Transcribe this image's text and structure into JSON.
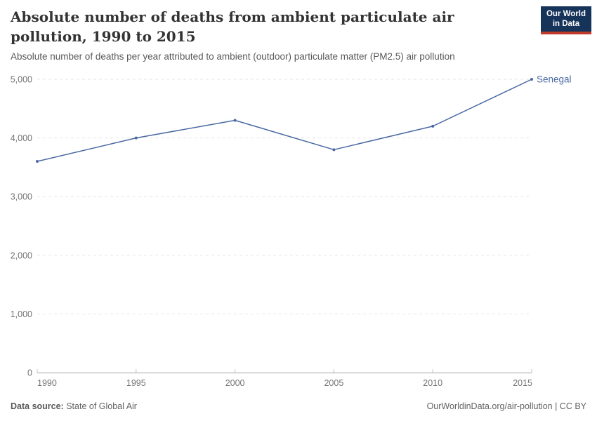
{
  "header": {
    "title": "Absolute number of deaths from ambient particulate air pollution, 1990 to 2015",
    "subtitle": "Absolute number of deaths per year attributed to ambient (outdoor) particulate matter (PM2.5) air pollution"
  },
  "logo": {
    "line1": "Our World",
    "line2": "in Data",
    "bg_color": "#16335a",
    "bar_color": "#c0392b",
    "text_color": "#ffffff"
  },
  "chart_data": {
    "type": "line",
    "title": "Absolute number of deaths from ambient particulate air pollution, 1990 to 2015",
    "subtitle": "Absolute number of deaths per year attributed to ambient (outdoor) particulate matter (PM2.5) air pollution",
    "x": [
      1990,
      1995,
      2000,
      2005,
      2010,
      2015
    ],
    "series": [
      {
        "name": "Senegal",
        "color": "#4a69a3",
        "values": [
          3600,
          4000,
          4300,
          3800,
          4200,
          5000
        ]
      }
    ],
    "xlabel": "",
    "ylabel": "",
    "xlim": [
      1990,
      2015
    ],
    "ylim": [
      0,
      5000
    ],
    "yticks": [
      {
        "value": 0,
        "label": "0"
      },
      {
        "value": 1000,
        "label": "1,000"
      },
      {
        "value": 2000,
        "label": "2,000"
      },
      {
        "value": 3000,
        "label": "3,000"
      },
      {
        "value": 4000,
        "label": "4,000"
      },
      {
        "value": 5000,
        "label": "5,000"
      }
    ],
    "xticks": [
      {
        "value": 1990,
        "label": "1990"
      },
      {
        "value": 1995,
        "label": "1995"
      },
      {
        "value": 2000,
        "label": "2000"
      },
      {
        "value": 2005,
        "label": "2005"
      },
      {
        "value": 2010,
        "label": "2010"
      },
      {
        "value": 2015,
        "label": "2015"
      }
    ],
    "grid": "horizontal-dashed",
    "legend": "inline-end-label"
  },
  "footer": {
    "source_label": "Data source:",
    "source_value": "State of Global Air",
    "link_text": "OurWorldinData.org/air-pollution | CC BY"
  },
  "colors": {
    "line": "#4a69a3",
    "grid": "#e5e5e5",
    "axis": "#a3a3a3",
    "tick": "#c4c4c4",
    "tick_label": "#737373"
  }
}
